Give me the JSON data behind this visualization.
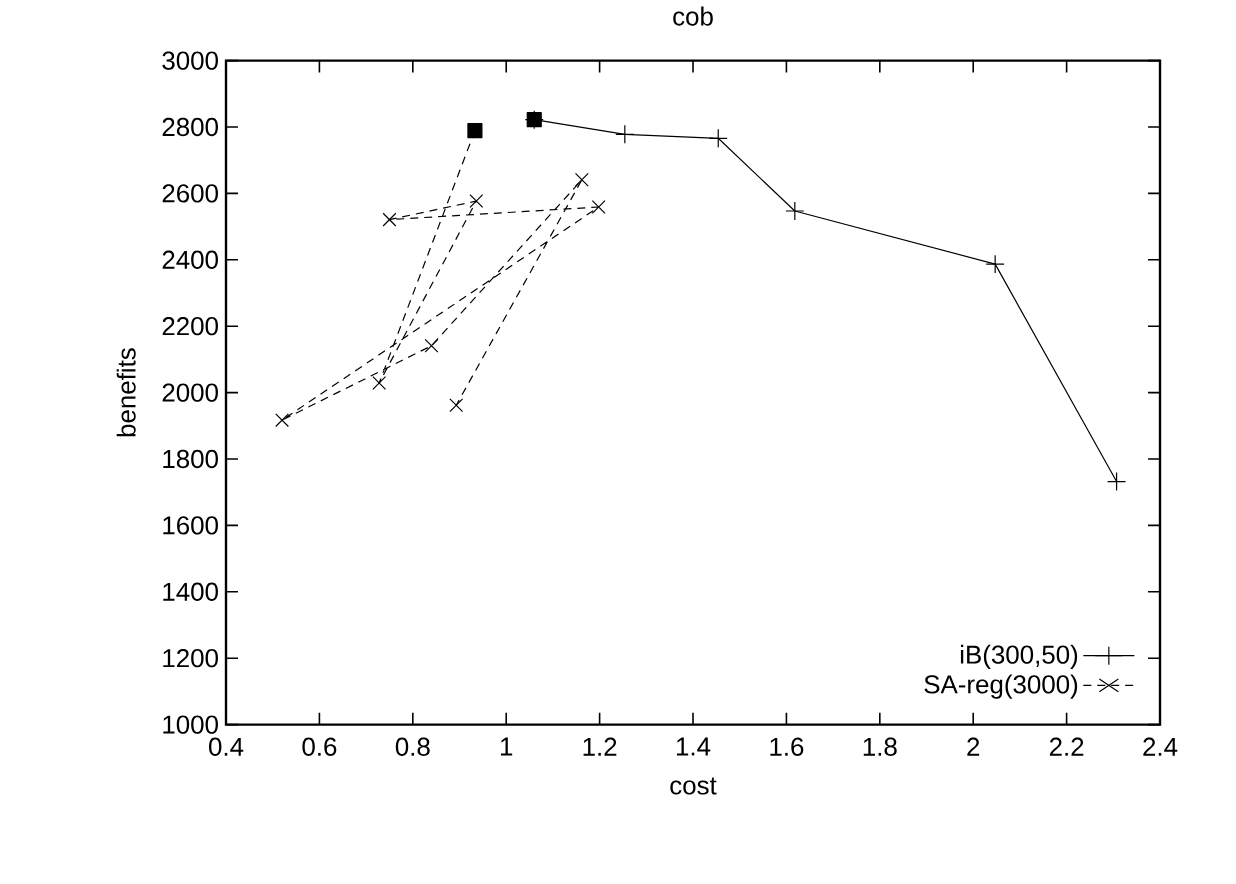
{
  "chart_data": {
    "type": "line",
    "title": "cob",
    "xlabel": "cost",
    "ylabel": "benefits",
    "xlim": [
      0.4,
      2.4
    ],
    "xticks": [
      0.4,
      0.6,
      0.8,
      1,
      1.2,
      1.4,
      1.6,
      1.8,
      2,
      2.2,
      2.4
    ],
    "ylim": [
      1000,
      3000
    ],
    "yticks": [
      1000,
      1200,
      1400,
      1600,
      1800,
      2000,
      2200,
      2400,
      2600,
      2800,
      3000
    ],
    "grid": false,
    "legend": "bottom right",
    "series": [
      {
        "name": "iB(300,50)",
        "color": "#000000",
        "marker": "cross",
        "line_style": "solid",
        "x": [
          1.06,
          1.254,
          1.454,
          1.618,
          2.047,
          2.307
        ],
        "values": [
          2822,
          2778,
          2766,
          2547,
          2387,
          1732
        ]
      },
      {
        "name": "SA-reg(3000)",
        "color": "#000000",
        "marker": "x",
        "line_style": "dashed",
        "x": [
          0.933,
          0.728,
          0.936,
          0.75,
          1.198,
          0.52,
          0.84,
          1.162,
          0.893
        ],
        "values": [
          2789,
          2029,
          2577,
          2521,
          2559,
          1917,
          2141,
          2641,
          1962
        ]
      },
      {
        "type": "scatter",
        "color": "#000000",
        "marker": "square",
        "x": [
          0.933,
          1.06
        ],
        "values": [
          2789,
          2822
        ]
      }
    ]
  }
}
